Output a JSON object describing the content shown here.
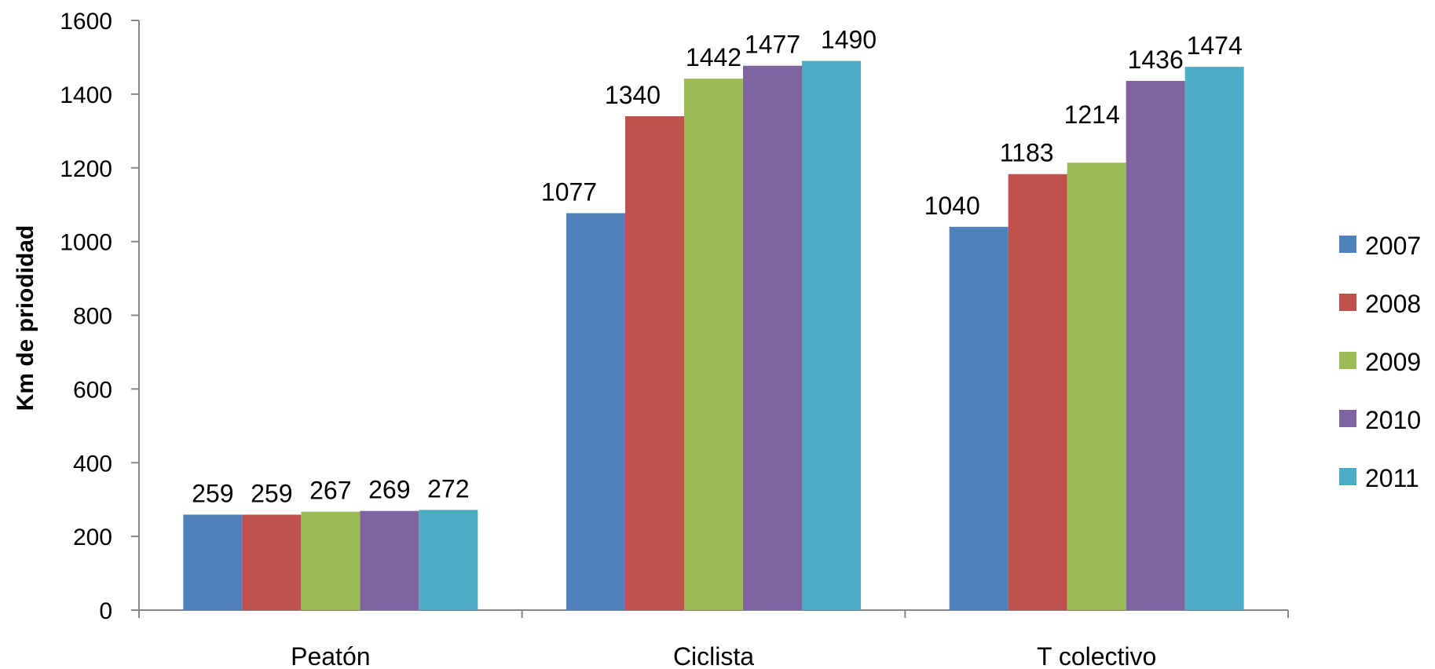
{
  "chart_data": {
    "type": "bar",
    "title": "",
    "xlabel": "",
    "ylabel": "Km de priodidad",
    "ylim": [
      0,
      1600
    ],
    "yticks": [
      0,
      200,
      400,
      600,
      800,
      1000,
      1200,
      1400,
      1600
    ],
    "grid": false,
    "legend_position": "right",
    "categories": [
      "Peatón",
      "Ciclista",
      "T colectivo"
    ],
    "series": [
      {
        "name": "2007",
        "color": "#4F81BD",
        "values": [
          259,
          1077,
          1040
        ]
      },
      {
        "name": "2008",
        "color": "#C0504D",
        "values": [
          259,
          1340,
          1183
        ]
      },
      {
        "name": "2009",
        "color": "#9BBB59",
        "values": [
          267,
          1442,
          1214
        ]
      },
      {
        "name": "2010",
        "color": "#8064A2",
        "values": [
          269,
          1477,
          1436
        ]
      },
      {
        "name": "2011",
        "color": "#4BACC6",
        "values": [
          272,
          1490,
          1474
        ]
      }
    ]
  }
}
